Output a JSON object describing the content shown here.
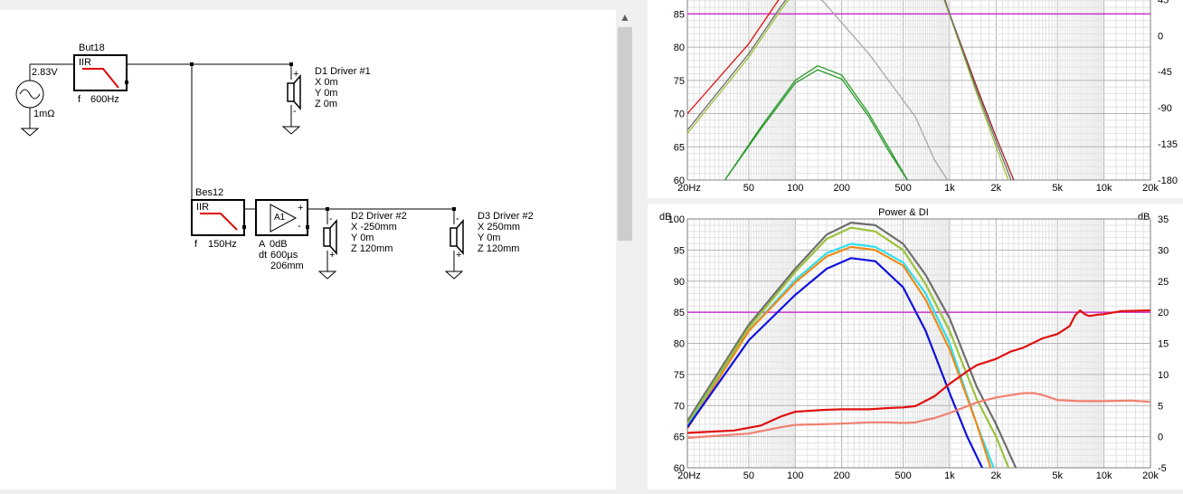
{
  "schematic": {
    "source": {
      "voltage": "2.83V",
      "impedance": "1mΩ"
    },
    "blocks": [
      {
        "id": "but18",
        "name": "But18",
        "type": "IIR",
        "param": "f",
        "value": "600Hz"
      },
      {
        "id": "bes12",
        "name": "Bes12",
        "type": "IIR",
        "param": "f",
        "value": "150Hz"
      },
      {
        "id": "amp",
        "type": "A1",
        "gain_label": "A",
        "gain": "0dB",
        "delay_label": "dt",
        "delay": "600µs",
        "distance": "206mm",
        "plus": "+",
        "minus": "-"
      }
    ],
    "drivers": [
      {
        "id": "d1",
        "name": "D1 Driver #1",
        "x": "X 0m",
        "y": "Y 0m",
        "z": "Z 0m",
        "pol_top": "+",
        "pol_bot": "-"
      },
      {
        "id": "d2",
        "name": "D2 Driver #2",
        "x": "X -250mm",
        "y": "Y 0m",
        "z": "Z 120mm",
        "pol_top": "-",
        "pol_bot": "+"
      },
      {
        "id": "d3",
        "name": "D3 Driver #2",
        "x": "X 250mm",
        "y": "Y 0m",
        "z": "Z 120mm",
        "pol_top": "-",
        "pol_bot": "+"
      }
    ]
  },
  "colors": {
    "ref_line": "#cc33cc",
    "grid_major": "#b4b4b4",
    "grid_minor": "#e2e2e2",
    "gray_curve": "#6e6e6e",
    "olive_curve": "#9ac33a",
    "cyan_curve": "#2ee0f0",
    "orange_curve": "#f08a1a",
    "blue_curve": "#1010e0",
    "red_curve": "#e01010",
    "salmon_curve": "#f08070",
    "darkred_curve": "#a02020",
    "green_curve": "#2a9a2a",
    "light_gray_curve": "#a8a8a8"
  },
  "chart_top": {
    "x_ticks": [
      "20Hz",
      "50",
      "100",
      "200",
      "500",
      "1k",
      "2k",
      "5k",
      "10k",
      "20k"
    ],
    "y_left_ticks": [
      "85",
      "80",
      "75",
      "70",
      "65",
      "60"
    ],
    "y_right_ticks": [
      "45",
      "0",
      "-45",
      "-90",
      "-135",
      "-180"
    ]
  },
  "chart_data": [
    {
      "type": "line",
      "x_scale": "log",
      "xlim": [
        20,
        20000
      ],
      "ylim": [
        60,
        89
      ],
      "y2lim": [
        -180,
        60
      ],
      "ref_line_y": 85,
      "series": [
        {
          "color": "red_curve",
          "x": [
            20,
            50,
            80,
            90,
            100
          ],
          "y": [
            70,
            80.5,
            87.5,
            88.8,
            90
          ]
        },
        {
          "color": "gray_curve",
          "x": [
            20,
            50,
            80,
            95,
            110
          ],
          "y": [
            67.5,
            79,
            86,
            88.3,
            90
          ]
        },
        {
          "color": "olive_curve",
          "x": [
            20,
            50,
            80,
            100,
            115
          ],
          "y": [
            67,
            78.5,
            85.5,
            88.5,
            90
          ]
        },
        {
          "color": "light_gray_curve",
          "x": [
            90,
            150,
            300,
            600,
            800,
            1000
          ],
          "y": [
            89.5,
            87,
            79,
            69.5,
            63,
            59.5
          ]
        },
        {
          "color": "green_curve",
          "x": [
            35,
            60,
            100,
            140,
            200,
            300,
            400,
            550
          ],
          "y": [
            60,
            68,
            75,
            77.2,
            75.8,
            70,
            65,
            59.5
          ]
        },
        {
          "color": "green_curve",
          "x": [
            35,
            60,
            100,
            140,
            200,
            300,
            400,
            550
          ],
          "y": [
            60,
            67.7,
            74.6,
            76.6,
            75.2,
            69.5,
            64.5,
            59.5
          ]
        },
        {
          "color": "darkred_curve",
          "x": [
            850,
            1000,
            1500,
            2000,
            2600
          ],
          "y": [
            90,
            85,
            74,
            66.5,
            60
          ]
        },
        {
          "color": "olive_curve",
          "x": [
            830,
            1000,
            1500,
            2000,
            2400
          ],
          "y": [
            90,
            84.8,
            73,
            65,
            60
          ]
        },
        {
          "color": "gray_curve",
          "x": [
            840,
            1000,
            1500,
            2000,
            2500
          ],
          "y": [
            90,
            85,
            73.5,
            65.8,
            60
          ]
        }
      ]
    },
    {
      "type": "line",
      "title": "Power & DI",
      "ylabel_left": "dB",
      "ylabel_right": "dB",
      "x_scale": "log",
      "xlim": [
        20,
        20000
      ],
      "ylim": [
        60,
        100
      ],
      "y2lim": [
        -5,
        35
      ],
      "ref_line_y": 85,
      "x_ticks": [
        "20Hz",
        "50",
        "100",
        "200",
        "500",
        "1k",
        "2k",
        "5k",
        "10k",
        "20k"
      ],
      "y_left_ticks": [
        "100",
        "95",
        "90",
        "85",
        "80",
        "75",
        "70",
        "65",
        "60"
      ],
      "y_right_ticks": [
        "35",
        "30",
        "25",
        "20",
        "15",
        "10",
        "5",
        "0",
        "-5"
      ],
      "series": [
        {
          "color": "gray_curve",
          "x": [
            20,
            50,
            100,
            160,
            230,
            330,
            500,
            700,
            1000,
            1500,
            2000,
            2800
          ],
          "y": [
            67.5,
            83,
            92,
            97.5,
            99.4,
            99.0,
            96,
            91,
            84,
            73,
            67,
            59
          ]
        },
        {
          "color": "olive_curve",
          "x": [
            20,
            50,
            100,
            160,
            230,
            330,
            500,
            700,
            1000,
            1500,
            2000,
            2500
          ],
          "y": [
            67,
            82.5,
            91.5,
            96.8,
            98.6,
            98.0,
            95,
            89.5,
            82,
            71,
            65,
            59
          ]
        },
        {
          "color": "cyan_curve",
          "x": [
            20,
            50,
            100,
            160,
            230,
            330,
            500,
            700,
            1000,
            1500,
            2000
          ],
          "y": [
            66.5,
            82,
            90.2,
            94.5,
            96.0,
            95.5,
            93,
            88,
            80,
            67,
            59
          ]
        },
        {
          "color": "orange_curve",
          "x": [
            20,
            50,
            100,
            160,
            230,
            330,
            500,
            700,
            1000,
            1500,
            1900
          ],
          "y": [
            66.3,
            82,
            89.8,
            94,
            95.5,
            95.0,
            92.5,
            87,
            79,
            67,
            59
          ]
        },
        {
          "color": "blue_curve",
          "x": [
            20,
            50,
            100,
            160,
            230,
            330,
            500,
            700,
            1000,
            1300,
            1700
          ],
          "y": [
            66.5,
            80.5,
            87.8,
            92,
            93.7,
            93.2,
            89,
            82,
            72,
            65,
            59
          ]
        },
        {
          "color": "red_curve",
          "axis": "right",
          "x": [
            20,
            40,
            60,
            80,
            100,
            150,
            200,
            300,
            400,
            500,
            600,
            800,
            1000,
            1300,
            1500,
            2000,
            2500,
            3000,
            4000,
            5000,
            6000,
            6500,
            7000,
            7500,
            8000,
            9000,
            10000,
            13000,
            20000
          ],
          "y": [
            0.6,
            1.0,
            1.8,
            3.2,
            4.0,
            4.3,
            4.4,
            4.4,
            4.6,
            4.7,
            4.9,
            6.5,
            8.5,
            10.5,
            11.5,
            12.5,
            13.7,
            14.3,
            15.8,
            16.5,
            17.8,
            19.5,
            20.3,
            19.7,
            19.4,
            19.6,
            19.7,
            20.2,
            20.3
          ]
        },
        {
          "color": "salmon_curve",
          "axis": "right",
          "x": [
            20,
            50,
            80,
            100,
            150,
            200,
            300,
            400,
            500,
            600,
            800,
            1000,
            1500,
            2000,
            3000,
            3500,
            4000,
            5000,
            7000,
            10000,
            15000,
            20000
          ],
          "y": [
            -0.2,
            0.5,
            1.5,
            1.9,
            2.0,
            2.1,
            2.3,
            2.3,
            2.2,
            2.3,
            3.0,
            3.8,
            5.5,
            6.3,
            7.0,
            7.0,
            6.7,
            5.9,
            5.7,
            5.7,
            5.8,
            5.6
          ]
        }
      ]
    }
  ]
}
